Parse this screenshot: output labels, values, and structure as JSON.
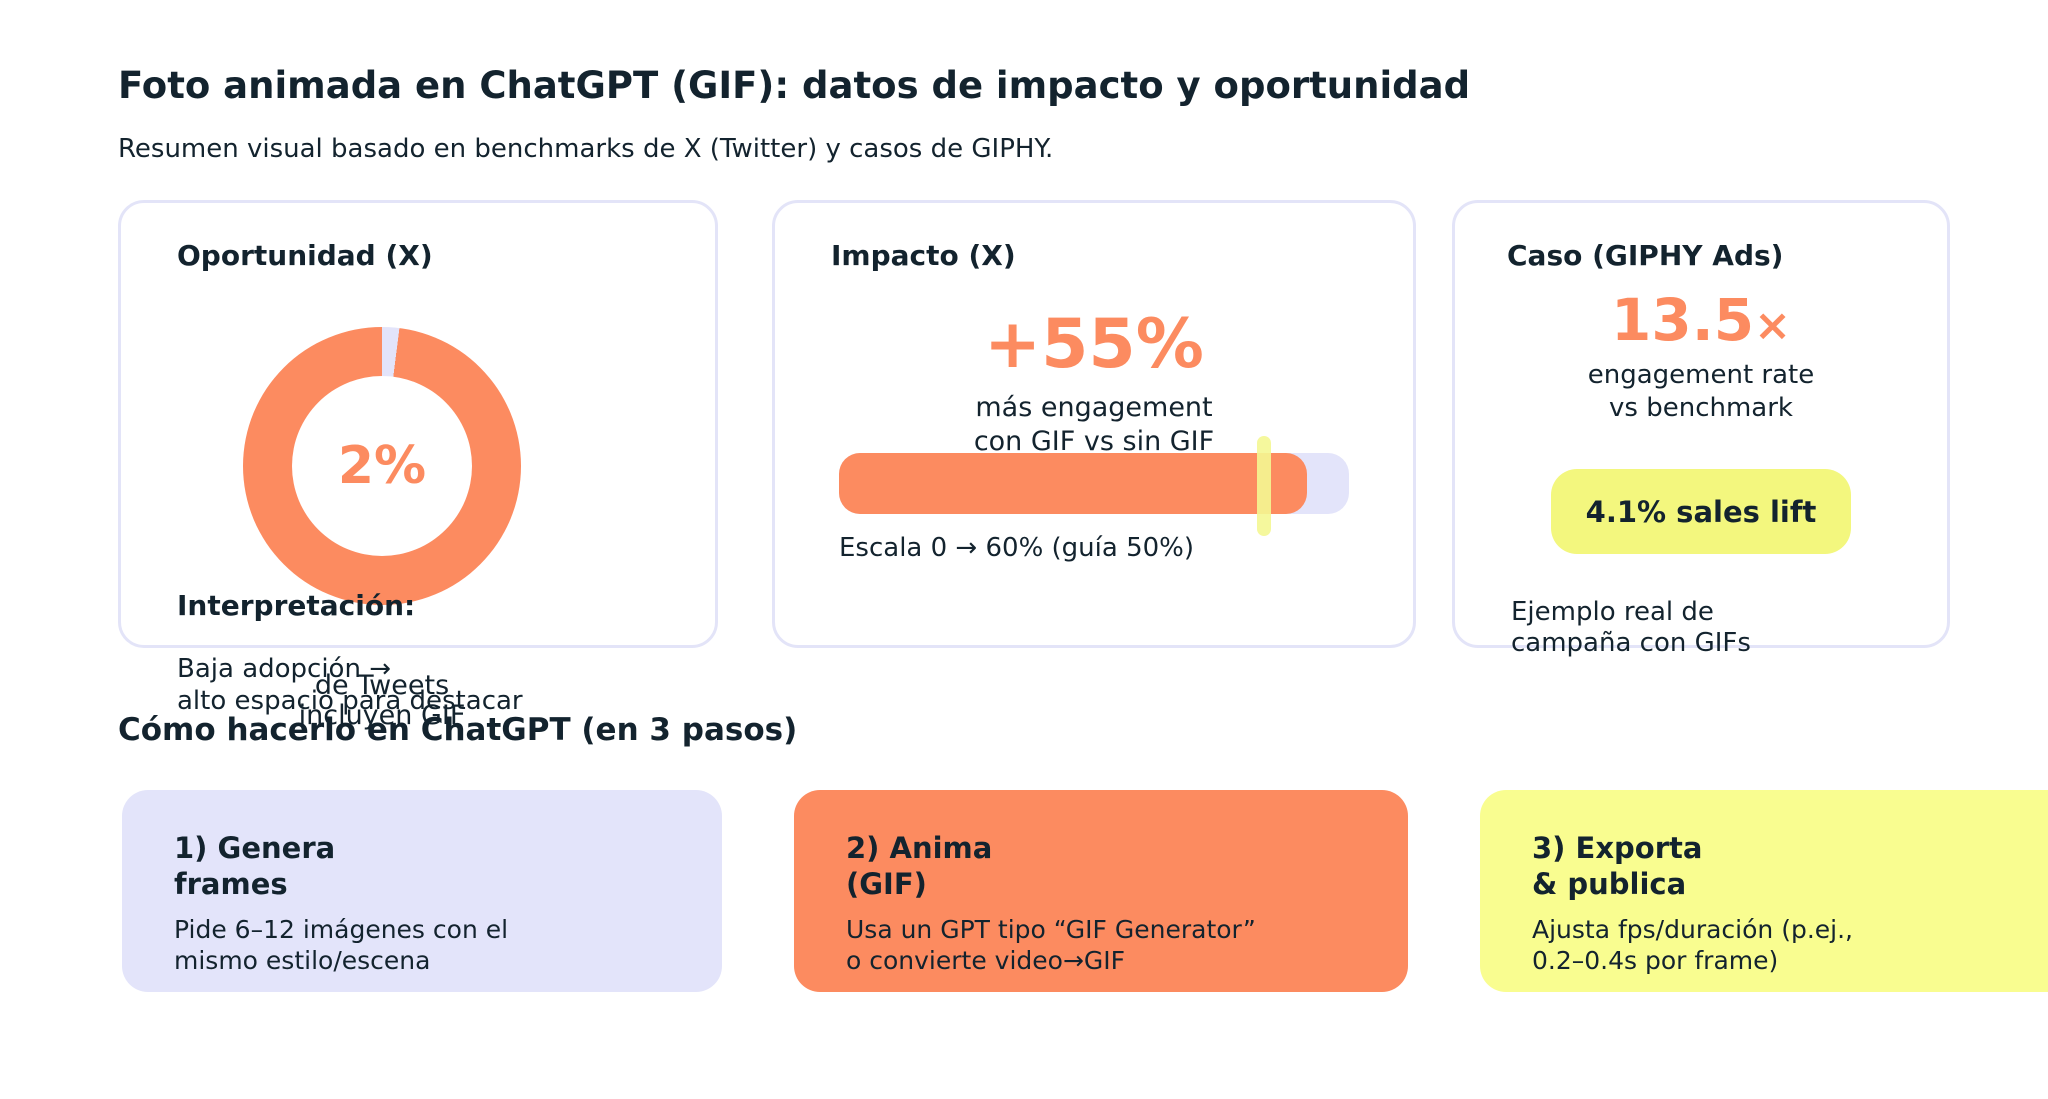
{
  "page": {
    "title": "Foto animada en ChatGPT (GIF): datos de impacto y oportunidad",
    "subtitle": "Resumen visual basado en benchmarks de X (Twitter) y casos de GIPHY.",
    "section2_title": "Cómo hacerlo en ChatGPT (en 3 pasos)"
  },
  "colors": {
    "accent_orange": "#FC8B60",
    "lavender": "#E3E4FA",
    "card_border": "#E3E4F8",
    "step_yellow": "#F9FD90",
    "badge_yellow": "#F3F77E",
    "guide_marker": "rgba(244,247,146,0.9)",
    "ink": "#13232E"
  },
  "cards": {
    "oportunidad": {
      "title": "Oportunidad (X)",
      "donut_value_label": "2%",
      "donut_caption_line1": "de Tweets",
      "donut_caption_line2": "incluyen GIF",
      "interpretation_label": "Interpretación:",
      "interpretation_line1": "Baja adopción →",
      "interpretation_line2": "alto espacio para destacar"
    },
    "impacto": {
      "title": "Impacto (X)",
      "big_value": "+55%",
      "caption_line1": "más engagement",
      "caption_line2": "con GIF vs sin GIF",
      "scale_label": "Escala 0 → 60% (guía 50%)"
    },
    "caso": {
      "title": "Caso (GIPHY Ads)",
      "big_value": "13.5",
      "big_value_suffix": "×",
      "caption_line1": "engagement rate",
      "caption_line2": "vs benchmark",
      "badge_label": "4.1% sales lift",
      "footnote_line1": "Ejemplo real de",
      "footnote_line2": "campaña con GIFs"
    }
  },
  "steps": [
    {
      "title_line1": "1) Genera",
      "title_line2": "frames",
      "body_line1": "Pide 6–12 imágenes con el",
      "body_line2": "mismo estilo/escena"
    },
    {
      "title_line1": "2) Anima",
      "title_line2": "(GIF)",
      "body_line1": "Usa un GPT tipo “GIF Generator”",
      "body_line2": "o convierte video→GIF"
    },
    {
      "title_line1": "3) Exporta",
      "title_line2": "& publica",
      "body_line1": "Ajusta fps/duración (p.ej.,",
      "body_line2": "0.2–0.4s por frame)"
    }
  ],
  "chart_data": [
    {
      "type": "pie",
      "donut": true,
      "title": "Oportunidad (X)",
      "labels": [
        "Tweets que incluyen GIF",
        "Resto de Tweets"
      ],
      "values": [
        2,
        98
      ],
      "center_label": "2%",
      "caption": "de Tweets incluyen GIF",
      "slice_colors": [
        "#E3E4FA",
        "#FC8B60"
      ],
      "annotation": "Interpretación: Baja adopción → alto espacio para destacar"
    },
    {
      "type": "bar",
      "title": "Impacto (X)",
      "categories": [
        "más engagement con GIF vs sin GIF"
      ],
      "values": [
        55
      ],
      "value_labels": [
        "+55%"
      ],
      "unit": "%",
      "xlim": [
        0,
        60
      ],
      "guide_value": 50,
      "caption": "Escala 0 → 60% (guía 50%)",
      "orientation": "horizontal",
      "grid": false
    },
    {
      "type": "table",
      "title": "Caso (GIPHY Ads)",
      "kpis": [
        {
          "value": "13.5×",
          "label": "engagement rate vs benchmark"
        },
        {
          "value": "4.1%",
          "label": "sales lift"
        }
      ],
      "caption": "Ejemplo real de campaña con GIFs"
    }
  ]
}
